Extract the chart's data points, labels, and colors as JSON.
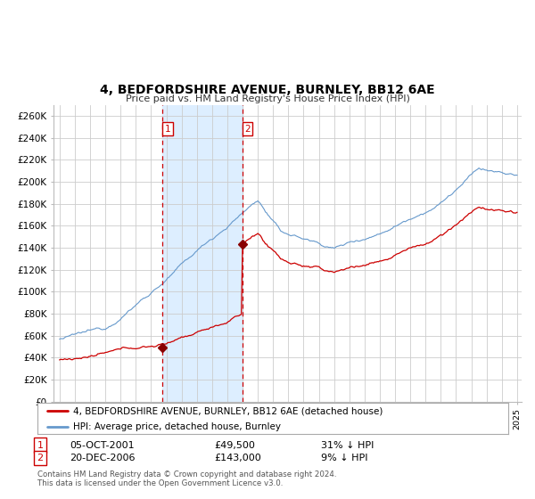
{
  "title": "4, BEDFORDSHIRE AVENUE, BURNLEY, BB12 6AE",
  "subtitle": "Price paid vs. HM Land Registry's House Price Index (HPI)",
  "ylim": [
    0,
    270000
  ],
  "yticks": [
    0,
    20000,
    40000,
    60000,
    80000,
    100000,
    120000,
    140000,
    160000,
    180000,
    200000,
    220000,
    240000,
    260000
  ],
  "ytick_labels": [
    "£0",
    "£20K",
    "£40K",
    "£60K",
    "£80K",
    "£100K",
    "£120K",
    "£140K",
    "£160K",
    "£180K",
    "£200K",
    "£220K",
    "£240K",
    "£260K"
  ],
  "sale1_date": 2001.75,
  "sale1_price": 49500,
  "sale2_date": 2006.97,
  "sale2_price": 143000,
  "legend_line1": "4, BEDFORDSHIRE AVENUE, BURNLEY, BB12 6AE (detached house)",
  "legend_line2": "HPI: Average price, detached house, Burnley",
  "row1_num": "1",
  "row1_date": "05-OCT-2001",
  "row1_price": "£49,500",
  "row1_hpi": "31% ↓ HPI",
  "row2_num": "2",
  "row2_date": "20-DEC-2006",
  "row2_price": "£143,000",
  "row2_hpi": "9% ↓ HPI",
  "footer": "Contains HM Land Registry data © Crown copyright and database right 2024.\nThis data is licensed under the Open Government Licence v3.0.",
  "red_color": "#cc0000",
  "blue_color": "#6699cc",
  "shade_color": "#ddeeff",
  "grid_color": "#cccccc",
  "vline_color": "#cc0000",
  "bg_color": "#ffffff"
}
